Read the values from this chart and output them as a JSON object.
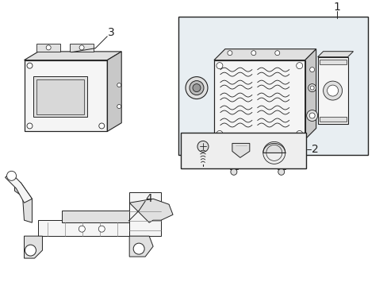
{
  "bg_color": "#ffffff",
  "line_color": "#222222",
  "fill_light": "#f5f5f5",
  "fill_gray": "#e0e0e0",
  "fill_dark": "#c8c8c8",
  "fill_box1": "#e8eef2",
  "fill_box2": "#eeeeee",
  "label1": "1",
  "label2": "2",
  "label3": "3",
  "label4": "4",
  "font_size": 10
}
